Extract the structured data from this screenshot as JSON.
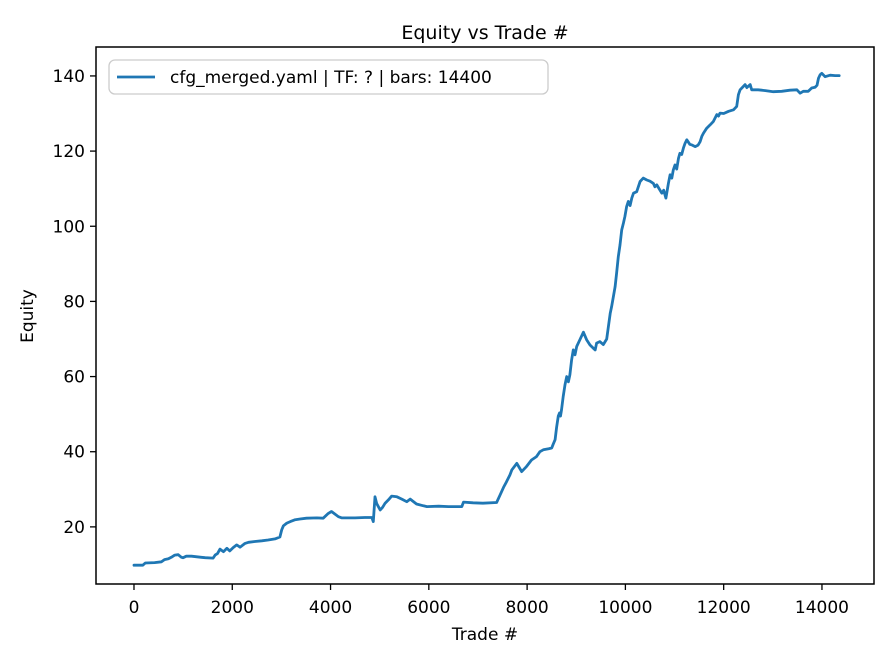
{
  "title": "Equity vs Trade #",
  "legend": {
    "label": "cfg_merged.yaml | TF: ? | bars: 14400",
    "position": "upper left"
  },
  "colors": {
    "line": "#1f77b4",
    "spine": "#000000",
    "text": "#000000",
    "legend_border": "#cccccc",
    "background": "#ffffff"
  },
  "chart_data": {
    "type": "line",
    "title": "Equity vs Trade #",
    "xlabel": "Trade #",
    "ylabel": "Equity",
    "grid": false,
    "legend_position": "upper left",
    "x_ticks": [
      0,
      2000,
      4000,
      6000,
      8000,
      10000,
      12000,
      14000
    ],
    "y_ticks": [
      20,
      40,
      60,
      80,
      100,
      120,
      140
    ],
    "xlim": [
      -773,
      15059
    ],
    "ylim": [
      4.8,
      147.7
    ],
    "series": [
      {
        "name": "cfg_merged.yaml | TF: ? | bars: 14400",
        "color": "#1f77b4",
        "points": [
          [
            1,
            9.8
          ],
          [
            180,
            9.8
          ],
          [
            230,
            10.4
          ],
          [
            420,
            10.5
          ],
          [
            560,
            10.7
          ],
          [
            620,
            11.3
          ],
          [
            700,
            11.5
          ],
          [
            760,
            11.9
          ],
          [
            830,
            12.5
          ],
          [
            900,
            12.6
          ],
          [
            965,
            11.9
          ],
          [
            1000,
            11.8
          ],
          [
            1065,
            12.2
          ],
          [
            1170,
            12.2
          ],
          [
            1370,
            11.9
          ],
          [
            1450,
            11.8
          ],
          [
            1610,
            11.7
          ],
          [
            1650,
            12.5
          ],
          [
            1700,
            12.9
          ],
          [
            1750,
            14.1
          ],
          [
            1820,
            13.4
          ],
          [
            1890,
            14.3
          ],
          [
            1950,
            13.6
          ],
          [
            2020,
            14.5
          ],
          [
            2090,
            15.2
          ],
          [
            2160,
            14.6
          ],
          [
            2260,
            15.6
          ],
          [
            2330,
            15.9
          ],
          [
            2460,
            16.1
          ],
          [
            2600,
            16.3
          ],
          [
            2730,
            16.5
          ],
          [
            2870,
            16.8
          ],
          [
            2970,
            17.3
          ],
          [
            3005,
            19.2
          ],
          [
            3040,
            20.3
          ],
          [
            3110,
            21.0
          ],
          [
            3180,
            21.4
          ],
          [
            3280,
            21.9
          ],
          [
            3380,
            22.1
          ],
          [
            3510,
            22.3
          ],
          [
            3720,
            22.4
          ],
          [
            3850,
            22.3
          ],
          [
            3955,
            23.6
          ],
          [
            4020,
            24.1
          ],
          [
            4090,
            23.4
          ],
          [
            4160,
            22.7
          ],
          [
            4230,
            22.4
          ],
          [
            4500,
            22.4
          ],
          [
            4700,
            22.5
          ],
          [
            4840,
            22.5
          ],
          [
            4870,
            21.4
          ],
          [
            4905,
            28.0
          ],
          [
            4940,
            26.2
          ],
          [
            5010,
            24.5
          ],
          [
            5060,
            25.2
          ],
          [
            5110,
            26.3
          ],
          [
            5180,
            27.2
          ],
          [
            5245,
            28.2
          ],
          [
            5350,
            28.0
          ],
          [
            5450,
            27.4
          ],
          [
            5550,
            26.7
          ],
          [
            5620,
            27.4
          ],
          [
            5750,
            26.1
          ],
          [
            5890,
            25.6
          ],
          [
            5960,
            25.4
          ],
          [
            6200,
            25.5
          ],
          [
            6400,
            25.4
          ],
          [
            6670,
            25.4
          ],
          [
            6705,
            26.6
          ],
          [
            6900,
            26.4
          ],
          [
            7100,
            26.3
          ],
          [
            7380,
            26.5
          ],
          [
            7450,
            28.5
          ],
          [
            7520,
            30.5
          ],
          [
            7580,
            32.0
          ],
          [
            7650,
            33.8
          ],
          [
            7690,
            35.2
          ],
          [
            7790,
            36.9
          ],
          [
            7890,
            34.7
          ],
          [
            7990,
            36.1
          ],
          [
            8090,
            37.8
          ],
          [
            8190,
            38.7
          ],
          [
            8260,
            40.0
          ],
          [
            8330,
            40.5
          ],
          [
            8440,
            40.8
          ],
          [
            8500,
            41.0
          ],
          [
            8530,
            42.0
          ],
          [
            8570,
            43.2
          ],
          [
            8600,
            46.5
          ],
          [
            8635,
            49.5
          ],
          [
            8660,
            50.3
          ],
          [
            8680,
            49.5
          ],
          [
            8700,
            51.1
          ],
          [
            8735,
            54.7
          ],
          [
            8770,
            57.8
          ],
          [
            8805,
            60.0
          ],
          [
            8840,
            58.6
          ],
          [
            8870,
            60.5
          ],
          [
            8905,
            64.4
          ],
          [
            8940,
            67.1
          ],
          [
            8975,
            65.8
          ],
          [
            9010,
            68.0
          ],
          [
            9075,
            69.8
          ],
          [
            9145,
            71.8
          ],
          [
            9210,
            69.8
          ],
          [
            9280,
            68.4
          ],
          [
            9350,
            67.5
          ],
          [
            9385,
            67.1
          ],
          [
            9415,
            68.9
          ],
          [
            9480,
            69.3
          ],
          [
            9550,
            68.5
          ],
          [
            9620,
            70.0
          ],
          [
            9655,
            73.3
          ],
          [
            9690,
            76.8
          ],
          [
            9720,
            78.6
          ],
          [
            9755,
            81.3
          ],
          [
            9790,
            83.9
          ],
          [
            9820,
            87.5
          ],
          [
            9855,
            91.9
          ],
          [
            9890,
            95.0
          ],
          [
            9925,
            99.0
          ],
          [
            9960,
            100.8
          ],
          [
            9990,
            102.6
          ],
          [
            10025,
            105.2
          ],
          [
            10060,
            106.6
          ],
          [
            10095,
            105.5
          ],
          [
            10130,
            107.5
          ],
          [
            10165,
            108.8
          ],
          [
            10230,
            109.2
          ],
          [
            10300,
            111.9
          ],
          [
            10365,
            112.8
          ],
          [
            10435,
            112.3
          ],
          [
            10500,
            112.0
          ],
          [
            10570,
            111.4
          ],
          [
            10600,
            110.5
          ],
          [
            10640,
            111.0
          ],
          [
            10740,
            108.8
          ],
          [
            10780,
            109.6
          ],
          [
            10825,
            107.5
          ],
          [
            10875,
            111.4
          ],
          [
            10910,
            113.7
          ],
          [
            10945,
            112.8
          ],
          [
            10975,
            115.0
          ],
          [
            11010,
            116.3
          ],
          [
            11045,
            115.2
          ],
          [
            11080,
            118.1
          ],
          [
            11110,
            119.4
          ],
          [
            11145,
            119.1
          ],
          [
            11180,
            120.8
          ],
          [
            11215,
            122.1
          ],
          [
            11250,
            123.0
          ],
          [
            11310,
            121.8
          ],
          [
            11360,
            121.6
          ],
          [
            11420,
            121.2
          ],
          [
            11480,
            121.6
          ],
          [
            11520,
            122.5
          ],
          [
            11555,
            123.9
          ],
          [
            11590,
            124.8
          ],
          [
            11655,
            126.1
          ],
          [
            11725,
            127.0
          ],
          [
            11790,
            127.9
          ],
          [
            11860,
            129.7
          ],
          [
            11895,
            129.3
          ],
          [
            11925,
            130.1
          ],
          [
            12000,
            130.0
          ],
          [
            12100,
            130.6
          ],
          [
            12200,
            131.0
          ],
          [
            12265,
            131.9
          ],
          [
            12300,
            135.0
          ],
          [
            12335,
            136.3
          ],
          [
            12400,
            137.2
          ],
          [
            12435,
            137.7
          ],
          [
            12470,
            136.9
          ],
          [
            12540,
            137.7
          ],
          [
            12570,
            136.3
          ],
          [
            12700,
            136.3
          ],
          [
            12850,
            136.1
          ],
          [
            13010,
            135.8
          ],
          [
            13180,
            135.9
          ],
          [
            13350,
            136.2
          ],
          [
            13490,
            136.3
          ],
          [
            13555,
            135.4
          ],
          [
            13620,
            135.9
          ],
          [
            13723,
            135.9
          ],
          [
            13791,
            136.8
          ],
          [
            13860,
            137.0
          ],
          [
            13900,
            137.5
          ],
          [
            13930,
            139.4
          ],
          [
            13962,
            140.3
          ],
          [
            13996,
            140.7
          ],
          [
            14064,
            139.8
          ],
          [
            14166,
            140.2
          ],
          [
            14268,
            140.1
          ],
          [
            14350,
            140.1
          ]
        ]
      }
    ]
  }
}
